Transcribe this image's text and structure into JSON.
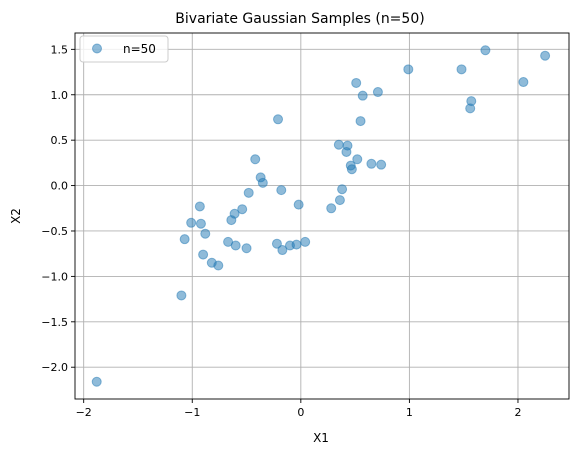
{
  "chart_data": {
    "type": "scatter",
    "title": "Bivariate Gaussian Samples (n=50)",
    "xlabel": "X1",
    "ylabel": "X2",
    "xlim": [
      -2.08,
      2.47
    ],
    "ylim": [
      -2.35,
      1.68
    ],
    "xticks": [
      -2,
      -1,
      0,
      1,
      2
    ],
    "yticks": [
      -2.0,
      -1.5,
      -1.0,
      -0.5,
      0.0,
      0.5,
      1.0,
      1.5
    ],
    "xtick_labels": [
      "−2",
      "−1",
      "0",
      "1",
      "2"
    ],
    "ytick_labels": [
      "−2.0",
      "−1.5",
      "−1.0",
      "−0.5",
      "0.0",
      "0.5",
      "1.0",
      "1.5"
    ],
    "grid": true,
    "legend": {
      "position": "top-left",
      "entries": [
        "n=50"
      ]
    },
    "series": [
      {
        "name": "n=50",
        "color": "#1f77b4",
        "alpha": 0.5,
        "points": [
          [
            -1.88,
            -2.16
          ],
          [
            -1.1,
            -1.21
          ],
          [
            -1.07,
            -0.59
          ],
          [
            -1.01,
            -0.41
          ],
          [
            -0.93,
            -0.23
          ],
          [
            -0.92,
            -0.42
          ],
          [
            -0.9,
            -0.76
          ],
          [
            -0.88,
            -0.53
          ],
          [
            -0.82,
            -0.85
          ],
          [
            -0.76,
            -0.88
          ],
          [
            -0.67,
            -0.62
          ],
          [
            -0.64,
            -0.38
          ],
          [
            -0.61,
            -0.31
          ],
          [
            -0.6,
            -0.66
          ],
          [
            -0.54,
            -0.26
          ],
          [
            -0.5,
            -0.69
          ],
          [
            -0.48,
            -0.08
          ],
          [
            -0.42,
            0.29
          ],
          [
            -0.37,
            0.09
          ],
          [
            -0.35,
            0.03
          ],
          [
            -0.22,
            -0.64
          ],
          [
            -0.21,
            0.73
          ],
          [
            -0.18,
            -0.05
          ],
          [
            -0.17,
            -0.71
          ],
          [
            -0.1,
            -0.66
          ],
          [
            -0.04,
            -0.65
          ],
          [
            -0.02,
            -0.21
          ],
          [
            0.04,
            -0.62
          ],
          [
            0.28,
            -0.25
          ],
          [
            0.35,
            0.45
          ],
          [
            0.36,
            -0.16
          ],
          [
            0.38,
            -0.04
          ],
          [
            0.42,
            0.37
          ],
          [
            0.43,
            0.44
          ],
          [
            0.46,
            0.22
          ],
          [
            0.47,
            0.18
          ],
          [
            0.51,
            1.13
          ],
          [
            0.52,
            0.29
          ],
          [
            0.55,
            0.71
          ],
          [
            0.57,
            0.99
          ],
          [
            0.65,
            0.24
          ],
          [
            0.71,
            1.03
          ],
          [
            0.74,
            0.23
          ],
          [
            0.99,
            1.28
          ],
          [
            1.48,
            1.28
          ],
          [
            1.56,
            0.85
          ],
          [
            1.57,
            0.93
          ],
          [
            1.7,
            1.49
          ],
          [
            2.05,
            1.14
          ],
          [
            2.25,
            1.43
          ]
        ]
      }
    ]
  }
}
